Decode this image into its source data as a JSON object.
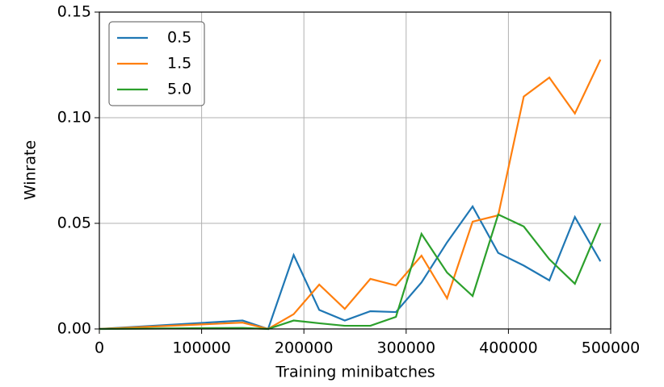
{
  "chart_data": {
    "type": "line",
    "xlabel": "Training minibatches",
    "ylabel": "Winrate",
    "x": [
      0,
      140000,
      165000,
      190000,
      215000,
      240000,
      265000,
      290000,
      315000,
      340000,
      365000,
      390000,
      415000,
      440000,
      465000,
      490000
    ],
    "series": [
      {
        "name": "0.5",
        "color": "#1f77b4",
        "values": [
          0,
          0.004,
          0,
          0.035,
          0.009,
          0.004,
          0.0084,
          0.008,
          0.022,
          0.041,
          0.058,
          0.036,
          0.03,
          0.023,
          0.053,
          0.032
        ]
      },
      {
        "name": "1.5",
        "color": "#ff7f0e",
        "values": [
          0,
          0.003,
          0,
          0.007,
          0.021,
          0.0095,
          0.0237,
          0.0206,
          0.0347,
          0.0145,
          0.0508,
          0.0538,
          0.11,
          0.119,
          0.102,
          0.1275
        ]
      },
      {
        "name": "5.0",
        "color": "#2ca02c",
        "values": [
          0,
          0.0005,
          0,
          0.004,
          0.0027,
          0.0015,
          0.0015,
          0.0057,
          0.045,
          0.0267,
          0.0156,
          0.0542,
          0.0485,
          0.033,
          0.0214,
          0.05
        ]
      }
    ],
    "xlim": [
      0,
      500000
    ],
    "xticks": [
      0,
      100000,
      200000,
      300000,
      400000,
      500000
    ],
    "ylim": [
      0,
      0.15
    ],
    "yticks": [
      {
        "value": 0,
        "label": "0.00"
      },
      {
        "value": 0.05,
        "label": "0.05"
      },
      {
        "value": 0.1,
        "label": "0.10"
      },
      {
        "value": 0.15,
        "label": "0.15"
      }
    ],
    "grid": true,
    "legend": "upper left"
  }
}
